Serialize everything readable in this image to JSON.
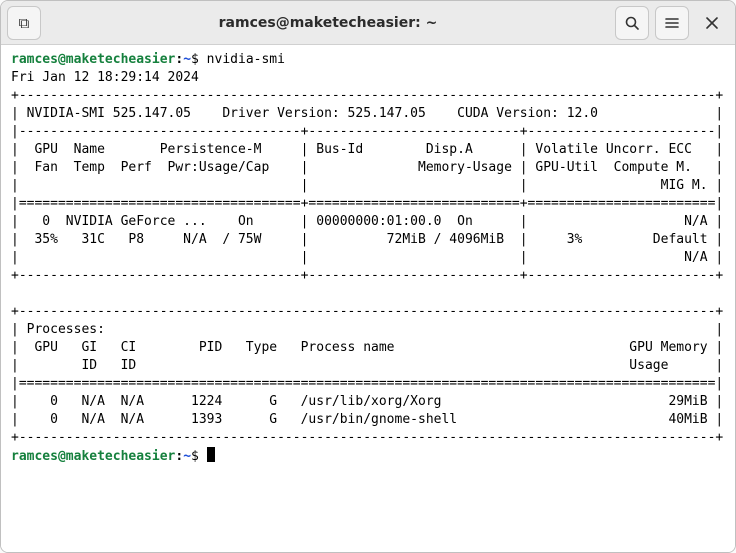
{
  "window": {
    "title": "ramces@maketecheasier: ~",
    "buttons": {
      "new_tab_icon": "⧉",
      "search_icon": "🔍",
      "menu_icon": "☰",
      "close_icon": "✕"
    }
  },
  "colors": {
    "titlebar_bg": "#ebebeb",
    "terminal_bg": "#ffffff",
    "terminal_fg": "#000000",
    "ps1_user": "#15803d",
    "ps1_path": "#1d4ed8"
  },
  "prompt": {
    "user_host": "ramces@maketecheasier",
    "path": "~",
    "symbol": "$"
  },
  "command": "nvidia-smi",
  "output": {
    "timestamp": "Fri Jan 12 18:29:14 2024",
    "smi_version": "525.147.05",
    "driver_version": "525.147.05",
    "cuda_version": "12.0",
    "gpu": {
      "index": "0",
      "name": "NVIDIA GeForce ...",
      "persistence": "On",
      "bus_id": "00000000:01:00.0",
      "disp_a": "On",
      "ecc": "N/A",
      "fan": "35%",
      "temp": "31C",
      "perf": "P8",
      "pwr_usage": "N/A",
      "pwr_cap": "75W",
      "mem_used": "72MiB",
      "mem_total": "4096MiB",
      "gpu_util": "3%",
      "compute_mode": "Default",
      "mig_mode": "N/A"
    },
    "processes": [
      {
        "gpu": "0",
        "gi": "N/A",
        "ci": "N/A",
        "pid": "1224",
        "type": "G",
        "name": "/usr/lib/xorg/Xorg",
        "mem": "29MiB"
      },
      {
        "gpu": "0",
        "gi": "N/A",
        "ci": "N/A",
        "pid": "1393",
        "type": "G",
        "name": "/usr/bin/gnome-shell",
        "mem": "40MiB"
      }
    ]
  }
}
